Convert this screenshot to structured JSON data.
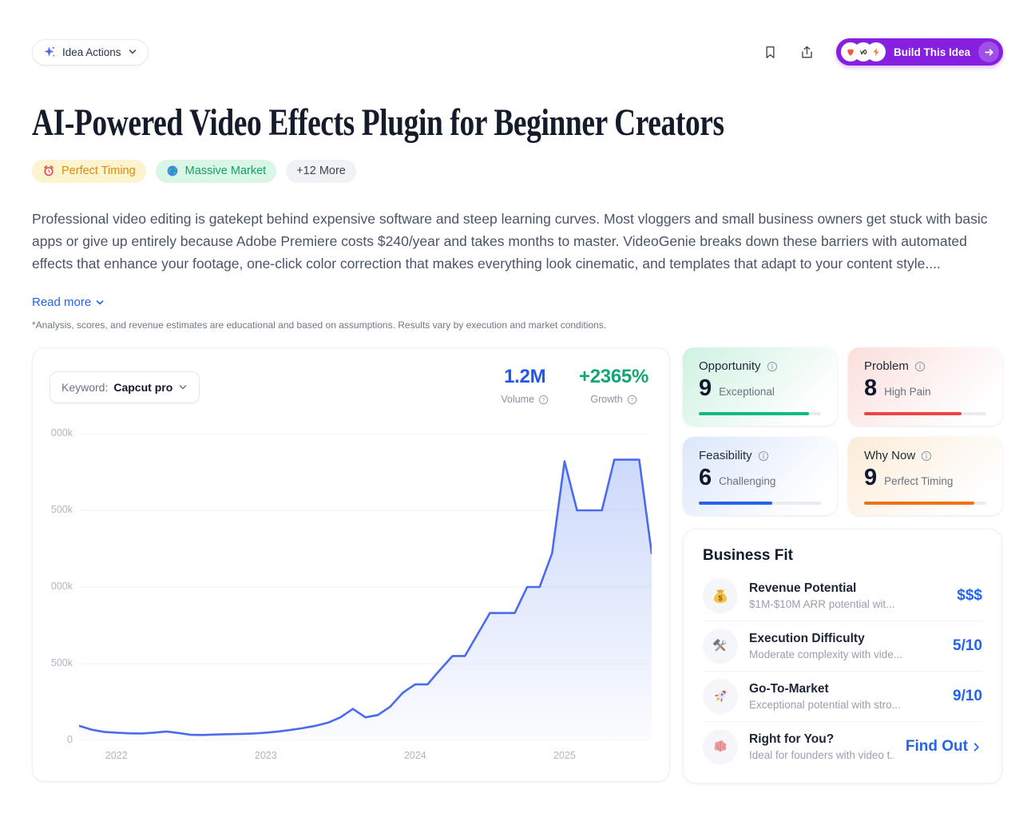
{
  "toolbar": {
    "idea_actions_label": "Idea Actions",
    "bookmark_icon": "bookmark-icon",
    "share_icon": "share-icon",
    "build_button_label": "Build This Idea",
    "build_button_color": "#871FE0",
    "build_logos": [
      "logo-orange-heart",
      "logo-v0",
      "logo-bolt"
    ]
  },
  "header": {
    "title": "AI-Powered Video Effects Plugin for Beginner Creators",
    "badges": [
      {
        "icon": "alarm-clock-icon",
        "label": "Perfect Timing",
        "bg": "#FCF3CF",
        "color": "#E38A0B"
      },
      {
        "icon": "globe-icon",
        "label": "Massive Market",
        "bg": "#D9F6E6",
        "color": "#12A364"
      },
      {
        "icon": null,
        "label": "+12 More",
        "bg": "#F1F2F5",
        "color": "#3E4554"
      }
    ],
    "description": "Professional video editing is gatekept behind expensive software and steep learning curves. Most vloggers and small business owners get stuck with basic apps or give up entirely because Adobe Premiere costs $240/year and takes months to master. VideoGenie breaks down these barriers with automated effects that enhance your footage, one-click color correction that makes everything look cinematic, and templates that adapt to your content style....",
    "read_more_label": "Read more",
    "disclaimer": "*Analysis, scores, and revenue estimates are educational and based on assumptions. Results vary by execution and market conditions."
  },
  "chart_card": {
    "keyword_label": "Keyword:",
    "keyword_value": "Capcut pro",
    "volume": {
      "value": "1.2M",
      "label": "Volume",
      "color": "#2257E7"
    },
    "growth": {
      "value": "+2365%",
      "label": "Growth",
      "color": "#0FA873"
    }
  },
  "chart_data": {
    "type": "area",
    "title": "Monthly search volume trend for keyword 'Capcut pro'",
    "unit": "thousands of monthly searches",
    "line_color": "#4B6BEF",
    "fill_color": "#7A9BF2",
    "grid": true,
    "x_months": [
      "2021-10",
      "2021-11",
      "2021-12",
      "2022-01",
      "2022-02",
      "2022-03",
      "2022-04",
      "2022-05",
      "2022-06",
      "2022-07",
      "2022-08",
      "2022-09",
      "2022-10",
      "2022-11",
      "2022-12",
      "2023-01",
      "2023-02",
      "2023-03",
      "2023-04",
      "2023-05",
      "2023-06",
      "2023-07",
      "2023-08",
      "2023-09",
      "2023-10",
      "2023-11",
      "2023-12",
      "2024-01",
      "2024-02",
      "2024-03",
      "2024-04",
      "2024-05",
      "2024-06",
      "2024-07",
      "2024-08",
      "2024-09",
      "2024-10",
      "2024-11",
      "2024-12",
      "2025-01",
      "2025-02",
      "2025-03",
      "2025-04",
      "2025-05",
      "2025-06",
      "2025-07",
      "2025-08"
    ],
    "values": [
      95,
      70,
      55,
      50,
      46,
      45,
      50,
      58,
      48,
      36,
      35,
      38,
      40,
      42,
      45,
      50,
      58,
      68,
      80,
      95,
      115,
      150,
      205,
      150,
      165,
      220,
      310,
      365,
      365,
      460,
      550,
      550,
      690,
      830,
      830,
      830,
      1000,
      1000,
      1220,
      1820,
      1500,
      1500,
      1500,
      1830,
      1830,
      1830,
      1220
    ],
    "ylim": [
      0,
      2000
    ],
    "yticks": [
      {
        "value": 0,
        "label": "0"
      },
      {
        "value": 500,
        "label": "500k"
      },
      {
        "value": 1000,
        "label": "000k"
      },
      {
        "value": 1500,
        "label": "500k"
      },
      {
        "value": 2000,
        "label": "000k"
      }
    ],
    "ytick_note": "labels are clipped at the card edge in the screenshot",
    "xticks": [
      "2022",
      "2023",
      "2024",
      "2025"
    ],
    "xtick_indexes": [
      3,
      15,
      27,
      39
    ],
    "legend": "none"
  },
  "score_cards": [
    {
      "title": "Opportunity",
      "score": 9,
      "descriptor": "Exceptional",
      "bar_color": "#10B981",
      "bg_from": "#CFF2E1"
    },
    {
      "title": "Problem",
      "score": 8,
      "descriptor": "High Pain",
      "bar_color": "#EF4444",
      "bg_from": "#FBDFDC"
    },
    {
      "title": "Feasibility",
      "score": 6,
      "descriptor": "Challenging",
      "bar_color": "#2563EB",
      "bg_from": "#DBE7FA"
    },
    {
      "title": "Why Now",
      "score": 9,
      "descriptor": "Perfect Timing",
      "bar_color": "#EF7315",
      "bg_from": "#FCECD8"
    }
  ],
  "business_fit": {
    "title": "Business Fit",
    "rows": [
      {
        "icon": "money-bag-icon",
        "name": "Revenue Potential",
        "description": "$1M-$10M ARR potential wit...",
        "value": "$$$"
      },
      {
        "icon": "tools-icon",
        "name": "Execution Difficulty",
        "description": "Moderate complexity with vide...",
        "value": "5/10"
      },
      {
        "icon": "rocket-icon",
        "name": "Go-To-Market",
        "description": "Exceptional potential with stro...",
        "value": "9/10"
      },
      {
        "icon": "brain-icon",
        "name": "Right for You?",
        "description": "Ideal for founders with video t...",
        "value": "Find Out"
      }
    ]
  }
}
